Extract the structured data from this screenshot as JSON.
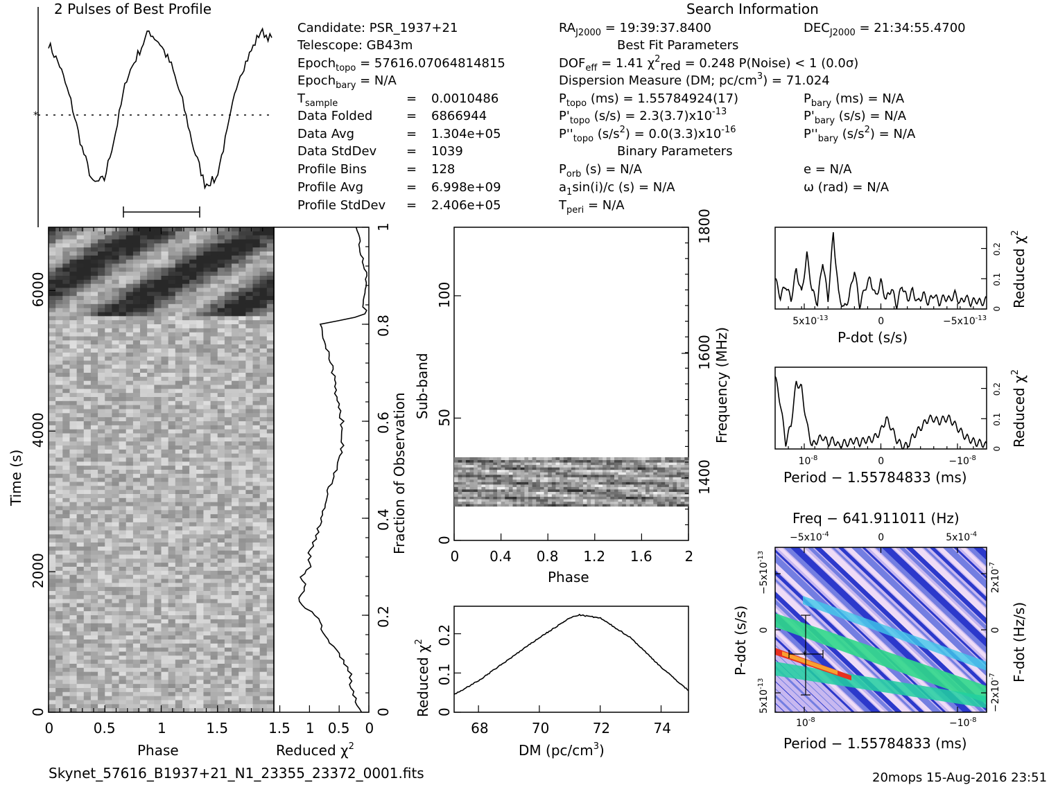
{
  "colors": {
    "ink": "#000000",
    "paper": "#ffffff",
    "ppdot_dark": "#2a2ad0",
    "ppdot_light": "#e8c8f0",
    "ppdot_green": "#20d070",
    "ppdot_red": "#e03020"
  },
  "titles": {
    "profile": "2 Pulses of Best Profile",
    "search_info": "Search Information",
    "best_fit": "Best Fit Parameters",
    "binary": "Binary Parameters",
    "filename": "Skynet_57616_B1937+21_N1_23355_23372_0001.fits",
    "stamp": "20mops 15-Aug-2016 23:51"
  },
  "info_left": [
    {
      "label": "Candidate:  PSR_1937+21",
      "value": ""
    },
    {
      "label": "Telescope:  GB43m",
      "value": ""
    },
    {
      "label": "Epoch",
      "sub": "topo",
      "rest": " = 57616.07064814815"
    },
    {
      "label": "Epoch",
      "sub": "bary",
      "rest": " = N/A"
    },
    {
      "label": "T",
      "sub": "sample",
      "rest": "",
      "eq": "=",
      "value": "0.0010486"
    },
    {
      "label": "Data Folded",
      "eq": "=",
      "value": "6866944"
    },
    {
      "label": "Data Avg",
      "eq": "=",
      "value": "1.304e+05"
    },
    {
      "label": "Data StdDev",
      "eq": "=",
      "value": "1039"
    },
    {
      "label": "Profile Bins",
      "eq": "=",
      "value": "128"
    },
    {
      "label": "Profile Avg",
      "eq": "=",
      "value": "6.998e+09"
    },
    {
      "label": "Profile StdDev",
      "eq": "=",
      "value": "2.406e+05"
    }
  ],
  "info_mid": {
    "ra": "RA",
    "ra_sub": "J2000",
    "ra_val": " = 19:39:37.8400",
    "dof": "DOF",
    "dof_sub": "eff",
    "dof_val": " = 1.41  ",
    "chi": "χ",
    "chi_sup": "2",
    "chi_sub": "red",
    "chi_val": " = 0.248  P(Noise) < 1  (0.0σ)",
    "dm_line": "Dispersion Measure (DM; pc/cm",
    "dm_sup": "3",
    "dm_val": ") = 71.024",
    "ptopo": "P",
    "ptopo_sub": "topo",
    "ptopo_val": " (ms) =  1.55784924(17)",
    "pdtopo": "P'",
    "pdtopo_sub": "topo",
    "pdtopo_val": " (s/s) =  2.3(3.7)x10",
    "pdtopo_exp": "-13",
    "pddtopo": "P''",
    "pddtopo_sub": "topo",
    "pddtopo_val": " (s/s",
    "pddtopo_sup": "2",
    "pddtopo_val2": ") = 0.0(3.3)x10",
    "pddtopo_exp": "-16",
    "porb": "P",
    "porb_sub": "orb",
    "porb_val": " (s) = N/A",
    "a1": "a",
    "a1_sub": "1",
    "a1_val": "sin(i)/c (s) = N/A",
    "tperi": "T",
    "tperi_sub": "peri",
    "tperi_val": " = N/A"
  },
  "info_right": {
    "dec": "DEC",
    "dec_sub": "J2000",
    "dec_val": " = 21:34:55.4700",
    "pbary": "P",
    "pbary_sub": "bary",
    "pbary_val": " (ms) = N/A",
    "pdbary": "P'",
    "pdbary_sub": "bary",
    "pdbary_val": " (s/s) = N/A",
    "pddbary": "P''",
    "pddbary_sub": "bary",
    "pddbary_val": " (s/s",
    "pddbary_sup": "2",
    "pddbary_val2": ") = N/A",
    "e": "e = N/A",
    "omega": "ω (rad) = N/A"
  },
  "chart_data": [
    {
      "id": "profile",
      "type": "line",
      "title": "2 Pulses of Best Profile",
      "x": [
        0,
        0.1,
        0.2,
        0.3,
        0.4,
        0.5,
        0.6,
        0.7,
        0.8,
        0.9,
        1.0,
        1.1,
        1.2,
        1.3,
        1.4,
        1.5,
        1.6,
        1.7,
        1.8,
        1.9,
        2.0
      ],
      "values": [
        0.92,
        0.78,
        0.55,
        0.25,
        0.02,
        0.05,
        0.35,
        0.7,
        0.85,
        1.0,
        0.92,
        0.78,
        0.55,
        0.25,
        0.02,
        0.05,
        0.35,
        0.7,
        0.85,
        1.0,
        0.95
      ],
      "ylim": [
        0,
        1.1
      ],
      "mean_line": 0.5
    },
    {
      "id": "time_phase",
      "type": "heatmap",
      "xlabel": "Phase",
      "ylabel": "Time (s)",
      "xticks": [
        "0",
        "0.5",
        "1",
        "1.5"
      ],
      "yticks": [
        "0",
        "2000",
        "4000",
        "6000"
      ],
      "xlim": [
        0,
        2
      ],
      "ylim": [
        0,
        6900
      ]
    },
    {
      "id": "time_chi",
      "type": "line",
      "xlabel": "Reduced χ",
      "xlabel_sup": "2",
      "ylabel": "Fraction of Observation",
      "xticks": [
        "1.5",
        "1",
        "0.5",
        "0"
      ],
      "yticks": [
        "0",
        "0.2",
        "0.4",
        "0.6",
        "0.8",
        "1"
      ],
      "frac": [
        0.0,
        0.02,
        0.05,
        0.08,
        0.12,
        0.15,
        0.2,
        0.23,
        0.26,
        0.28,
        0.3,
        0.33,
        0.36,
        0.4,
        0.45,
        0.5,
        0.55,
        0.6,
        0.65,
        0.7,
        0.75,
        0.78,
        0.8,
        0.82,
        0.85,
        0.9,
        0.95,
        1.0
      ],
      "values": [
        0.1,
        0.2,
        0.3,
        0.3,
        0.5,
        0.7,
        0.9,
        1.2,
        1.05,
        1.15,
        1.0,
        1.0,
        0.9,
        0.8,
        0.7,
        0.55,
        0.45,
        0.45,
        0.55,
        0.6,
        0.7,
        0.8,
        0.8,
        0.05,
        0.1,
        0.05,
        0.15,
        0.2
      ],
      "xlim": [
        1.6,
        0
      ]
    },
    {
      "id": "subband",
      "type": "heatmap",
      "xlabel": "Phase",
      "ylabel": "Sub-band",
      "ylabel2": "Frequency (MHz)",
      "xticks": [
        "0",
        "0.4",
        "0.8",
        "1.2",
        "1.6",
        "2"
      ],
      "yticks": [
        "0",
        "50",
        "100"
      ],
      "freqticks": [
        "1400",
        "1600",
        "1800"
      ],
      "xlim": [
        0,
        2
      ],
      "ylim": [
        0,
        128
      ],
      "band": [
        14,
        34
      ]
    },
    {
      "id": "dm",
      "type": "line",
      "xlabel": "DM (pc/cm",
      "xlabel_sup": "3",
      "xlabel_end": ")",
      "ylabel": "Reduced χ",
      "ylabel_sup": "2",
      "x": [
        67.2,
        68,
        69,
        70,
        71,
        71.3,
        72,
        73,
        74,
        74.9
      ],
      "values": [
        0.045,
        0.08,
        0.135,
        0.19,
        0.24,
        0.248,
        0.24,
        0.19,
        0.115,
        0.055
      ],
      "xticks": [
        "68",
        "70",
        "72",
        "74"
      ],
      "yticks": [
        "0",
        "0.1",
        "0.2"
      ],
      "xlim": [
        67.2,
        74.9
      ],
      "ylim": [
        0,
        0.27
      ]
    },
    {
      "id": "pdot",
      "type": "line",
      "xlabel": "P-dot (s/s)",
      "ylabel": "Reduced χ",
      "ylabel_sup": "2",
      "x": [
        0,
        1,
        2,
        3,
        4,
        5,
        6,
        7,
        8,
        9,
        10,
        11,
        12,
        13,
        14,
        15,
        16,
        17,
        18,
        19,
        20,
        21,
        22,
        23,
        24,
        25,
        26,
        27,
        28,
        29,
        30,
        31,
        32,
        33,
        34,
        35,
        36,
        37,
        38,
        39,
        40
      ],
      "values": [
        0.1,
        0.04,
        0.08,
        0.03,
        0.13,
        0.05,
        0.18,
        0.06,
        0.02,
        0.16,
        0.03,
        0.25,
        0.05,
        0.0,
        0.04,
        0.13,
        0.01,
        0.07,
        0.1,
        0.04,
        0.09,
        0.03,
        0.07,
        0.01,
        0.08,
        0.03,
        0.06,
        0.02,
        0.05,
        0.02,
        0.05,
        0.02,
        0.04,
        0.03,
        0.05,
        0.02,
        0.04,
        0.02,
        0.03,
        0.02,
        0.03
      ],
      "xticks": [
        "5x10",
        "0",
        "−5x10"
      ],
      "xtick_exp": "-13",
      "yticks": [
        "0",
        "0.1",
        "0.2"
      ],
      "ylim": [
        0,
        0.27
      ]
    },
    {
      "id": "period",
      "type": "line",
      "xlabel": "Period − 1.55784833 (ms)",
      "ylabel": "Reduced χ",
      "ylabel_sup": "2",
      "x": [
        0,
        1,
        2,
        3,
        4,
        5,
        6,
        7,
        8,
        9,
        10,
        11,
        12,
        13,
        14,
        15,
        16,
        17,
        18,
        19,
        20,
        21,
        22,
        23,
        24,
        25,
        26,
        27,
        28,
        29,
        30,
        31,
        32,
        33,
        34,
        35,
        36,
        37,
        38,
        39,
        40
      ],
      "values": [
        0.24,
        0.15,
        0.02,
        0.08,
        0.22,
        0.2,
        0.08,
        0.01,
        0.03,
        0.04,
        0.02,
        0.03,
        0.01,
        0.02,
        0.02,
        0.03,
        0.02,
        0.03,
        0.03,
        0.04,
        0.06,
        0.1,
        0.07,
        0.03,
        0.01,
        0.01,
        0.04,
        0.06,
        0.08,
        0.1,
        0.1,
        0.09,
        0.1,
        0.1,
        0.08,
        0.06,
        0.04,
        0.03,
        0.02,
        0.02,
        0.01
      ],
      "xticks": [
        "10",
        "0",
        "−10"
      ],
      "xtick_exp": "-8",
      "yticks": [
        "0",
        "0.1",
        "0.2"
      ],
      "ylim": [
        0,
        0.27
      ]
    },
    {
      "id": "ppdot",
      "type": "heatmap",
      "title": "Freq − 641.911011 (Hz)",
      "xlabel": "Period − 1.55784833 (ms)",
      "ylabel": "P-dot (s/s)",
      "ylabel2": "F-dot (Hz/s)",
      "topticks": [
        "−5x10",
        "0",
        "5x10"
      ],
      "top_exp": "-4",
      "xticks": [
        "10",
        "−10"
      ],
      "x_exp": "-8",
      "yticks": [
        "−5x10",
        "0",
        "5x10"
      ],
      "y_exp": "-13",
      "y2ticks": [
        "2x10",
        "0",
        "−2x10"
      ],
      "y2_exp": "-7"
    }
  ]
}
